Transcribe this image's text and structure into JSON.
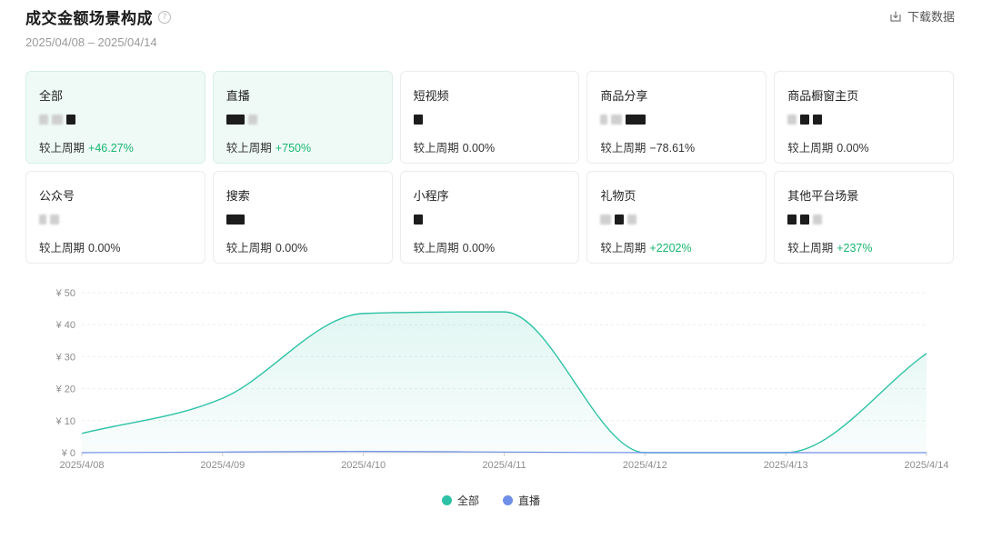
{
  "header": {
    "title": "成交金额场景构成",
    "help_symbol": "?",
    "date_range": "2025/04/08 – 2025/04/14",
    "download_label": "下载数据"
  },
  "compare_prefix": "较上周期",
  "cards": [
    {
      "label": "全部",
      "change": "+46.27%",
      "trend": "up",
      "active": true
    },
    {
      "label": "直播",
      "change": "+750%",
      "trend": "up",
      "active": true
    },
    {
      "label": "短视频",
      "change": "0.00%",
      "trend": "flat",
      "active": false
    },
    {
      "label": "商品分享",
      "change": "−78.61%",
      "trend": "flat",
      "active": false
    },
    {
      "label": "商品橱窗主页",
      "change": "0.00%",
      "trend": "flat",
      "active": false
    },
    {
      "label": "公众号",
      "change": "0.00%",
      "trend": "flat",
      "active": false
    },
    {
      "label": "搜索",
      "change": "0.00%",
      "trend": "flat",
      "active": false
    },
    {
      "label": "小程序",
      "change": "0.00%",
      "trend": "flat",
      "active": false
    },
    {
      "label": "礼物页",
      "change": "+2202%",
      "trend": "up",
      "active": false
    },
    {
      "label": "其他平台场景",
      "change": "+237%",
      "trend": "up",
      "active": false
    }
  ],
  "colors": {
    "accent_green": "#19b56f",
    "series_all": "#2dc2a6",
    "series_live": "#6f8fe8"
  },
  "chart_data": {
    "type": "area",
    "x": [
      "2025/4/08",
      "2025/4/09",
      "2025/4/10",
      "2025/4/11",
      "2025/4/12",
      "2025/4/13",
      "2025/4/14"
    ],
    "y_ticks": [
      "¥ 0",
      "¥ 10",
      "¥ 20",
      "¥ 30",
      "¥ 40",
      "¥ 50"
    ],
    "ylim": [
      0,
      50
    ],
    "grid": true,
    "legend_position": "bottom-center",
    "series": [
      {
        "name": "全部",
        "values": [
          6,
          17,
          43.5,
          44,
          0,
          0,
          31
        ]
      },
      {
        "name": "直播",
        "values": [
          0,
          0.2,
          0.4,
          0.2,
          0,
          0,
          0
        ]
      }
    ]
  }
}
